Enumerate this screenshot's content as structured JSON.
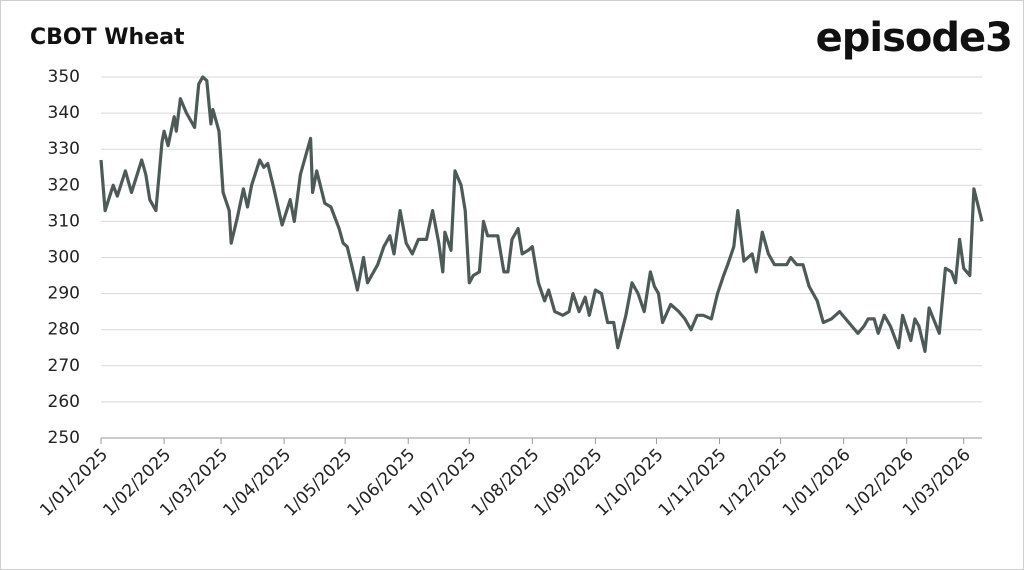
{
  "brand": "episode3",
  "chart_data": {
    "type": "line",
    "title": "CBOT Wheat",
    "ylim": [
      250,
      350
    ],
    "yticks": [
      250,
      260,
      270,
      280,
      290,
      300,
      310,
      320,
      330,
      340,
      350
    ],
    "grid": true,
    "xlim": [
      "2025-01-01",
      "2026-03-10"
    ],
    "xticks": [
      {
        "value": "2025-01-01",
        "label": "1/01/2025"
      },
      {
        "value": "2025-02-01",
        "label": "1/02/2025"
      },
      {
        "value": "2025-03-01",
        "label": "1/03/2025"
      },
      {
        "value": "2025-04-01",
        "label": "1/04/2025"
      },
      {
        "value": "2025-05-01",
        "label": "1/05/2025"
      },
      {
        "value": "2025-06-01",
        "label": "1/06/2025"
      },
      {
        "value": "2025-07-01",
        "label": "1/07/2025"
      },
      {
        "value": "2025-08-01",
        "label": "1/08/2025"
      },
      {
        "value": "2025-09-01",
        "label": "1/09/2025"
      },
      {
        "value": "2025-10-01",
        "label": "1/10/2025"
      },
      {
        "value": "2025-11-01",
        "label": "1/11/2025"
      },
      {
        "value": "2025-12-01",
        "label": "1/12/2025"
      },
      {
        "value": "2026-01-01",
        "label": "1/01/2026"
      },
      {
        "value": "2026-02-01",
        "label": "1/02/2026"
      },
      {
        "value": "2026-03-01",
        "label": "1/03/2026"
      }
    ],
    "x": [
      "2025-01-01",
      "2025-01-03",
      "2025-01-07",
      "2025-01-09",
      "2025-01-13",
      "2025-01-16",
      "2025-01-21",
      "2025-01-23",
      "2025-01-25",
      "2025-01-28",
      "2025-01-31",
      "2025-02-01",
      "2025-02-03",
      "2025-02-06",
      "2025-02-07",
      "2025-02-09",
      "2025-02-12",
      "2025-02-15",
      "2025-02-16",
      "2025-02-18",
      "2025-02-20",
      "2025-02-22",
      "2025-02-24",
      "2025-02-25",
      "2025-02-28",
      "2025-03-02",
      "2025-03-05",
      "2025-03-06",
      "2025-03-09",
      "2025-03-12",
      "2025-03-14",
      "2025-03-16",
      "2025-03-20",
      "2025-03-22",
      "2025-03-24",
      "2025-03-27",
      "2025-03-31",
      "2025-04-04",
      "2025-04-06",
      "2025-04-09",
      "2025-04-12",
      "2025-04-14",
      "2025-04-15",
      "2025-04-17",
      "2025-04-21",
      "2025-04-24",
      "2025-04-28",
      "2025-04-30",
      "2025-05-02",
      "2025-05-05",
      "2025-05-07",
      "2025-05-10",
      "2025-05-12",
      "2025-05-14",
      "2025-05-17",
      "2025-05-20",
      "2025-05-23",
      "2025-05-25",
      "2025-05-28",
      "2025-05-31",
      "2025-06-03",
      "2025-06-06",
      "2025-06-10",
      "2025-06-13",
      "2025-06-16",
      "2025-06-18",
      "2025-06-19",
      "2025-06-22",
      "2025-06-24",
      "2025-06-27",
      "2025-06-29",
      "2025-07-01",
      "2025-07-03",
      "2025-07-06",
      "2025-07-08",
      "2025-07-10",
      "2025-07-15",
      "2025-07-18",
      "2025-07-20",
      "2025-07-22",
      "2025-07-25",
      "2025-07-27",
      "2025-07-30",
      "2025-08-01",
      "2025-08-04",
      "2025-08-07",
      "2025-08-09",
      "2025-08-12",
      "2025-08-16",
      "2025-08-19",
      "2025-08-21",
      "2025-08-24",
      "2025-08-27",
      "2025-08-29",
      "2025-09-01",
      "2025-09-04",
      "2025-09-07",
      "2025-09-10",
      "2025-09-12",
      "2025-09-16",
      "2025-09-19",
      "2025-09-22",
      "2025-09-25",
      "2025-09-28",
      "2025-09-30",
      "2025-10-02",
      "2025-10-04",
      "2025-10-08",
      "2025-10-12",
      "2025-10-15",
      "2025-10-18",
      "2025-10-21",
      "2025-10-24",
      "2025-10-28",
      "2025-10-31",
      "2025-11-03",
      "2025-11-05",
      "2025-11-08",
      "2025-11-10",
      "2025-11-13",
      "2025-11-17",
      "2025-11-19",
      "2025-11-22",
      "2025-11-25",
      "2025-11-28",
      "2025-12-01",
      "2025-12-04",
      "2025-12-06",
      "2025-12-09",
      "2025-12-12",
      "2025-12-15",
      "2025-12-19",
      "2025-12-22",
      "2025-12-26",
      "2025-12-30",
      "2026-01-02",
      "2026-01-05",
      "2026-01-08",
      "2026-01-11",
      "2026-01-13",
      "2026-01-16",
      "2026-01-18",
      "2026-01-21",
      "2026-01-24",
      "2026-01-28",
      "2026-01-30",
      "2026-02-03",
      "2026-02-05",
      "2026-02-07",
      "2026-02-10",
      "2026-02-12",
      "2026-02-17",
      "2026-02-20",
      "2026-02-23",
      "2026-02-25",
      "2026-02-27",
      "2026-03-01",
      "2026-03-04",
      "2026-03-06",
      "2026-03-10"
    ],
    "series": [
      {
        "name": "CBOT Wheat",
        "color": "#4e5a57",
        "values": [
          327,
          313,
          320,
          317,
          324,
          318,
          327,
          323,
          316,
          313,
          332,
          335,
          331,
          339,
          335,
          344,
          340,
          337,
          336,
          348,
          350,
          349,
          337,
          341,
          335,
          318,
          313,
          304,
          311,
          319,
          314,
          320,
          327,
          325,
          326,
          319,
          309,
          316,
          310,
          323,
          329,
          333,
          318,
          324,
          315,
          314,
          308,
          304,
          303,
          296,
          291,
          300,
          293,
          295,
          298,
          303,
          306,
          301,
          313,
          304,
          301,
          305,
          305,
          313,
          304,
          296,
          307,
          302,
          324,
          320,
          313,
          293,
          295,
          296,
          310,
          306,
          306,
          296,
          296,
          305,
          308,
          301,
          302,
          303,
          293,
          288,
          291,
          285,
          284,
          285,
          290,
          285,
          289,
          284,
          291,
          290,
          282,
          282,
          275,
          284,
          293,
          290,
          285,
          296,
          292,
          290,
          282,
          287,
          285,
          283,
          280,
          284,
          284,
          283,
          290,
          295,
          298,
          303,
          313,
          299,
          301,
          296,
          307,
          301,
          298,
          298,
          298,
          300,
          298,
          298,
          292,
          288,
          282,
          283,
          285,
          283,
          281,
          279,
          281,
          283,
          283,
          279,
          284,
          281,
          275,
          284,
          277,
          283,
          281,
          274,
          286,
          279,
          297,
          296,
          293,
          305,
          297,
          295,
          319,
          310
        ]
      }
    ]
  }
}
